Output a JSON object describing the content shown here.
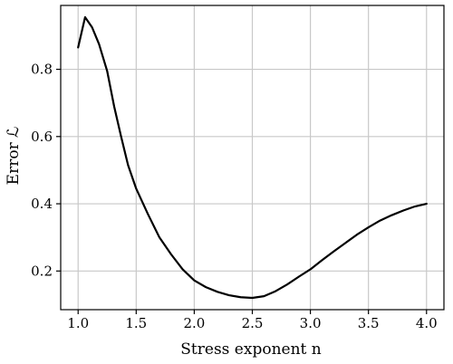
{
  "chart_data": {
    "type": "line",
    "xlabel": "Stress exponent n",
    "ylabel": "Error ℒ",
    "xlim": [
      0.85,
      4.15
    ],
    "ylim": [
      0.085,
      0.99
    ],
    "xticks": [
      1.0,
      1.5,
      2.0,
      2.5,
      3.0,
      3.5,
      4.0
    ],
    "xtick_labels": [
      "1.0",
      "1.5",
      "2.0",
      "2.5",
      "3.0",
      "3.5",
      "4.0"
    ],
    "yticks": [
      0.2,
      0.4,
      0.6,
      0.8
    ],
    "ytick_labels": [
      "0.2",
      "0.4",
      "0.6",
      "0.8"
    ],
    "grid": true,
    "legend": "none",
    "line_color": "#000000",
    "grid_color": "#c8c8c8",
    "series": [
      {
        "x": [
          1.0,
          1.06,
          1.12,
          1.18,
          1.25,
          1.31,
          1.37,
          1.43,
          1.5,
          1.6,
          1.7,
          1.8,
          1.9,
          2.0,
          2.1,
          2.2,
          2.3,
          2.4,
          2.5,
          2.6,
          2.7,
          2.8,
          2.9,
          3.0,
          3.1,
          3.2,
          3.3,
          3.4,
          3.5,
          3.6,
          3.7,
          3.8,
          3.9,
          4.0
        ],
        "y": [
          0.865,
          0.955,
          0.925,
          0.875,
          0.795,
          0.69,
          0.6,
          0.515,
          0.445,
          0.37,
          0.3,
          0.25,
          0.205,
          0.172,
          0.152,
          0.138,
          0.128,
          0.122,
          0.12,
          0.125,
          0.14,
          0.16,
          0.183,
          0.205,
          0.232,
          0.258,
          0.283,
          0.308,
          0.33,
          0.35,
          0.366,
          0.38,
          0.392,
          0.4
        ]
      }
    ]
  }
}
